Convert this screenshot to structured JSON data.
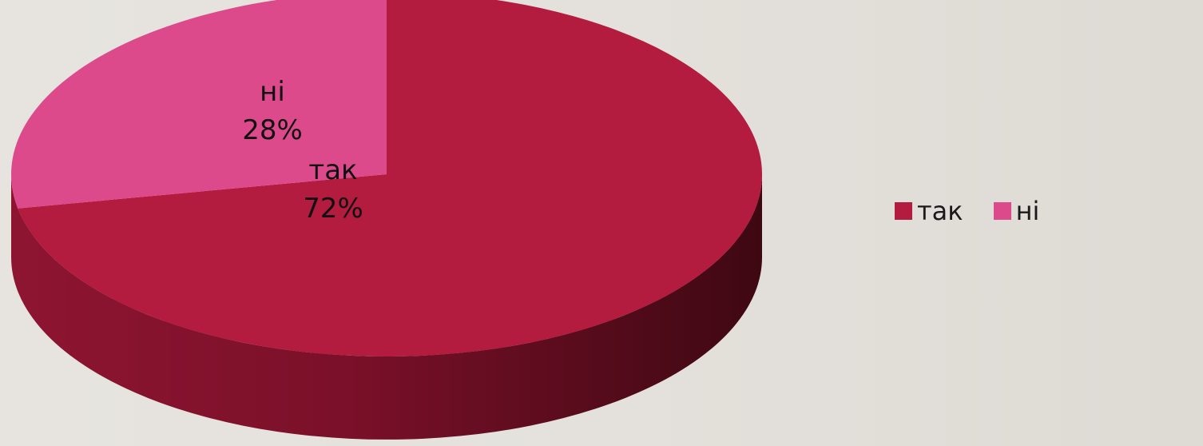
{
  "chart_data": {
    "type": "pie",
    "style": "3d",
    "title": "",
    "legend_position": "right",
    "slices": [
      {
        "name": "так",
        "value": 72,
        "label": "72%",
        "color": "#b31b3f"
      },
      {
        "name": "ні",
        "value": 28,
        "label": "28%",
        "color": "#dd4a8c"
      }
    ]
  },
  "legend": {
    "items": [
      {
        "label": "так",
        "color": "#b31b3f"
      },
      {
        "label": "ні",
        "color": "#dd4a8c"
      }
    ]
  }
}
